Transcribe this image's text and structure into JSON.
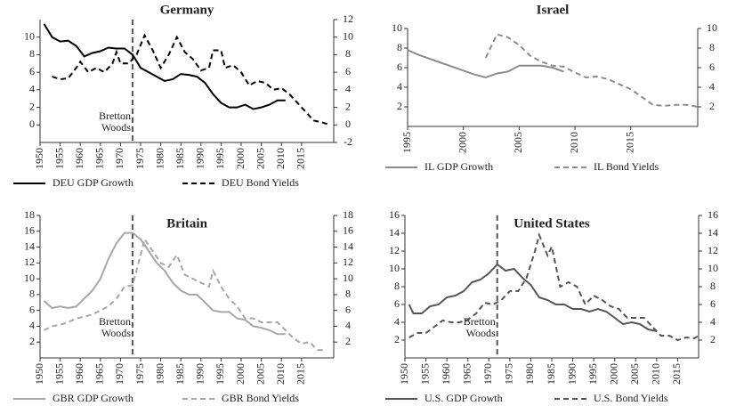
{
  "chart_data": [
    {
      "type": "line",
      "title": "Germany",
      "xlim": [
        1950,
        2023
      ],
      "xticks": [
        1950,
        1955,
        1960,
        1965,
        1970,
        1975,
        1980,
        1985,
        1990,
        1995,
        2000,
        2005,
        2010,
        2015
      ],
      "ylim": [
        -2,
        12
      ],
      "yticks": [
        0,
        2,
        4,
        6,
        8,
        10
      ],
      "y2lim": [
        -2,
        12
      ],
      "y2ticks": [
        -2,
        0,
        2,
        4,
        6,
        8,
        10,
        12
      ],
      "annotation": {
        "lines": [
          "Bretton",
          "Woods"
        ],
        "x": 1973
      },
      "series": [
        {
          "name": "DEU GDP Growth",
          "color": "#000000",
          "style": "solid",
          "x": [
            1951,
            1953,
            1955,
            1957,
            1959,
            1961,
            1963,
            1965,
            1967,
            1969,
            1971,
            1973,
            1975,
            1977,
            1979,
            1981,
            1983,
            1985,
            1987,
            1989,
            1991,
            1993,
            1995,
            1997,
            1999,
            2001,
            2003,
            2005,
            2007,
            2009,
            2011
          ],
          "values": [
            11.5,
            10,
            9.5,
            9.6,
            9,
            7.8,
            8.2,
            8.4,
            8.8,
            8.7,
            8.7,
            8,
            6.5,
            6,
            5.5,
            5,
            5.2,
            5.8,
            5.7,
            5.5,
            4.8,
            3.5,
            2.5,
            2,
            2,
            2.3,
            1.8,
            2,
            2.3,
            2.8,
            2.8
          ]
        },
        {
          "name": "DEU Bond Yields",
          "color": "#000000",
          "style": "dashed",
          "axis": "y2",
          "x": [
            1953,
            1955,
            1957,
            1959,
            1960,
            1962,
            1964,
            1966,
            1968,
            1969,
            1970,
            1972,
            1974,
            1976,
            1978,
            1980,
            1982,
            1984,
            1986,
            1988,
            1990,
            1992,
            1993,
            1995,
            1996,
            1998,
            2000,
            2002,
            2004,
            2006,
            2008,
            2010,
            2012,
            2014,
            2016,
            2018,
            2020,
            2022
          ],
          "values": [
            5.5,
            5.2,
            5.3,
            6.5,
            7.2,
            6,
            6.5,
            6,
            7,
            8.3,
            7,
            7,
            8,
            10.2,
            8.5,
            6.5,
            8,
            10,
            8.3,
            7.5,
            6.2,
            6.5,
            8.5,
            8.5,
            6.5,
            6.8,
            6,
            4.5,
            5,
            4.8,
            4,
            4.2,
            3.5,
            2.5,
            1.5,
            0.5,
            0.3,
            0
          ]
        }
      ]
    },
    {
      "type": "line",
      "title": "Israel",
      "xlim": [
        1995,
        2021
      ],
      "xticks": [
        1995,
        2000,
        2005,
        2010,
        2015
      ],
      "ylim": [
        0,
        10
      ],
      "yticks": [
        2,
        4,
        6,
        8,
        10
      ],
      "y2lim": [
        0,
        10
      ],
      "y2ticks": [
        2,
        4,
        6,
        8,
        10
      ],
      "series": [
        {
          "name": "IL GDP Growth",
          "color": "#8c8c8c",
          "style": "solid",
          "x": [
            1995,
            1996,
            1997,
            1998,
            1999,
            2000,
            2001,
            2002,
            2003,
            2004,
            2005,
            2006,
            2007,
            2008,
            2009
          ],
          "values": [
            7.8,
            7.3,
            6.9,
            6.5,
            6.1,
            5.7,
            5.3,
            5.0,
            5.4,
            5.6,
            6.2,
            6.2,
            6.2,
            6.0,
            5.6
          ]
        },
        {
          "name": "IL Bond Yields",
          "color": "#8c8c8c",
          "style": "dashed",
          "axis": "y2",
          "x": [
            2002,
            2003,
            2004,
            2005,
            2006,
            2007,
            2008,
            2009,
            2010,
            2011,
            2012,
            2013,
            2014,
            2015,
            2016,
            2017,
            2018,
            2019,
            2020,
            2021
          ],
          "values": [
            7.0,
            9.4,
            9.1,
            8.3,
            7.2,
            6.6,
            6.2,
            6.1,
            5.5,
            5.0,
            5.1,
            4.8,
            4.3,
            3.8,
            3.0,
            2.2,
            2.1,
            2.2,
            2.2,
            2.0
          ]
        }
      ]
    },
    {
      "type": "line",
      "title": "Britain",
      "xlim": [
        1950,
        2023
      ],
      "xticks": [
        1950,
        1955,
        1960,
        1965,
        1970,
        1975,
        1980,
        1985,
        1990,
        1995,
        2000,
        2005,
        2010,
        2015
      ],
      "ylim": [
        0,
        18
      ],
      "yticks": [
        2,
        4,
        6,
        8,
        10,
        12,
        14,
        16,
        18
      ],
      "y2lim": [
        0,
        18
      ],
      "y2ticks": [
        2,
        4,
        6,
        8,
        10,
        12,
        14,
        16,
        18
      ],
      "annotation": {
        "lines": [
          "Bretton",
          "Woods"
        ],
        "x": 1973
      },
      "series": [
        {
          "name": "GBR GDP Growth",
          "color": "#a6a6a6",
          "style": "solid",
          "x": [
            1951,
            1953,
            1955,
            1957,
            1959,
            1961,
            1963,
            1965,
            1967,
            1969,
            1971,
            1973,
            1975,
            1977,
            1979,
            1981,
            1983,
            1985,
            1987,
            1989,
            1991,
            1993,
            1995,
            1997,
            1999,
            2001,
            2003,
            2005,
            2007,
            2009,
            2011
          ],
          "values": [
            7.2,
            6.3,
            6.5,
            6.3,
            6.5,
            7.5,
            8.5,
            10,
            12.5,
            14.5,
            15.8,
            15.8,
            15,
            13.5,
            12,
            11,
            9.5,
            8.5,
            8,
            8,
            7,
            6,
            5.8,
            5.8,
            5,
            4.8,
            4,
            3.8,
            3.5,
            3,
            3
          ]
        },
        {
          "name": "GBR Bond Yields",
          "color": "#a6a6a6",
          "style": "dashed",
          "axis": "y2",
          "x": [
            1951,
            1953,
            1955,
            1957,
            1959,
            1961,
            1963,
            1965,
            1967,
            1969,
            1971,
            1973,
            1975,
            1976,
            1978,
            1980,
            1982,
            1984,
            1986,
            1988,
            1990,
            1992,
            1993,
            1995,
            1997,
            1999,
            2001,
            2003,
            2005,
            2007,
            2009,
            2011,
            2013,
            2015,
            2017,
            2019,
            2021
          ],
          "values": [
            3.5,
            4,
            4.2,
            4.5,
            5,
            5.2,
            5.5,
            6,
            6.5,
            7.5,
            9,
            9.2,
            13,
            15,
            13.5,
            12,
            11.5,
            13,
            10.5,
            10,
            9.5,
            9,
            11,
            9,
            7.5,
            6.5,
            5,
            5,
            4.5,
            4.5,
            4.5,
            3.5,
            2.5,
            1.8,
            2,
            1,
            1
          ]
        }
      ]
    },
    {
      "type": "line",
      "title": "United States",
      "xlim": [
        1950,
        2020
      ],
      "xticks": [
        1950,
        1955,
        1960,
        1965,
        1970,
        1975,
        1980,
        1985,
        1990,
        1995,
        2000,
        2005,
        2010,
        2015
      ],
      "ylim": [
        0,
        16
      ],
      "yticks": [
        2,
        4,
        6,
        8,
        10,
        12,
        14,
        16
      ],
      "y2lim": [
        0,
        16
      ],
      "y2ticks": [
        2,
        4,
        6,
        8,
        10,
        12,
        14,
        16
      ],
      "annotation": {
        "lines": [
          "Bretton",
          "Woods"
        ],
        "x": 1972
      },
      "series": [
        {
          "name": "U.S. GDP Growth",
          "color": "#555555",
          "style": "solid",
          "x": [
            1951,
            1952,
            1954,
            1956,
            1958,
            1960,
            1962,
            1964,
            1966,
            1968,
            1970,
            1972,
            1974,
            1976,
            1978,
            1980,
            1982,
            1984,
            1986,
            1988,
            1990,
            1992,
            1994,
            1996,
            1998,
            2000,
            2002,
            2004,
            2006,
            2008,
            2010
          ],
          "values": [
            6,
            5,
            5,
            5.8,
            6,
            6.8,
            7,
            7.5,
            8.5,
            8.8,
            9.5,
            10.5,
            9.8,
            10,
            9,
            8.2,
            6.8,
            6.5,
            6,
            6,
            5.5,
            5.5,
            5.2,
            5.5,
            5.2,
            4.5,
            3.8,
            4,
            3.8,
            3.2,
            3
          ]
        },
        {
          "name": "U.S. Bond Yields",
          "color": "#555555",
          "style": "dashed",
          "axis": "y2",
          "x": [
            1951,
            1953,
            1955,
            1957,
            1959,
            1961,
            1963,
            1965,
            1967,
            1969,
            1971,
            1973,
            1975,
            1977,
            1979,
            1981,
            1982,
            1984,
            1985,
            1987,
            1989,
            1991,
            1993,
            1995,
            1997,
            1999,
            2001,
            2003,
            2005,
            2007,
            2009,
            2011,
            2013,
            2015,
            2017,
            2019,
            2020
          ],
          "values": [
            2.3,
            2.8,
            2.8,
            3.5,
            4.2,
            4,
            4,
            4.3,
            5,
            6.2,
            6,
            6.5,
            7.5,
            7.5,
            9,
            12,
            13.8,
            11.5,
            12.5,
            8,
            8.5,
            8,
            6,
            7,
            6.5,
            5.8,
            5.5,
            4.5,
            4.5,
            4.5,
            3.5,
            2.5,
            2.5,
            2,
            2.3,
            2.2,
            2.5
          ]
        }
      ]
    }
  ]
}
